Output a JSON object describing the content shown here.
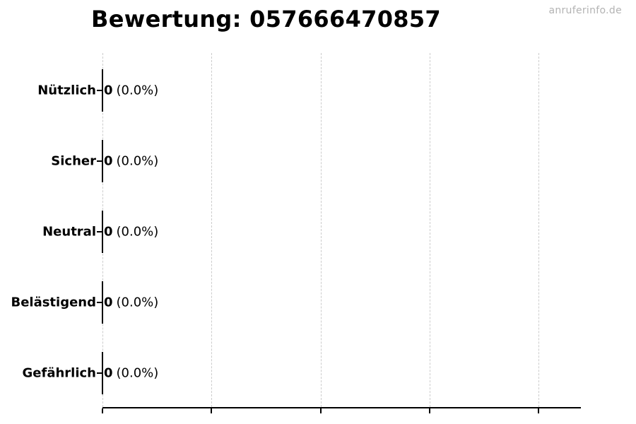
{
  "chart_data": {
    "type": "bar",
    "orientation": "horizontal",
    "title": "Bewertung: 057666470857",
    "watermark": "anruferinfo.de",
    "categories": [
      "Nützlich",
      "Sicher",
      "Neutral",
      "Belästigend",
      "Gefährlich"
    ],
    "values": [
      0,
      0,
      0,
      0,
      0
    ],
    "value_labels": [
      "0 (0.0%)",
      "0 (0.0%)",
      "0 (0.0%)",
      "0 (0.0%)",
      "0 (0.0%)"
    ],
    "xlabel": "",
    "ylabel": "",
    "x_tick_labels": [],
    "gridlines": {
      "axis": "x",
      "count": 5,
      "style": "dashed",
      "color": "#cccccc"
    },
    "legend": "none",
    "bar_edge_color": "#000000",
    "background": "#ffffff"
  },
  "rows": [
    {
      "label": "Nützlich",
      "value": "0",
      "percent": "(0.0%)"
    },
    {
      "label": "Sicher",
      "value": "0",
      "percent": "(0.0%)"
    },
    {
      "label": "Neutral",
      "value": "0",
      "percent": "(0.0%)"
    },
    {
      "label": "Belästigend",
      "value": "0",
      "percent": "(0.0%)"
    },
    {
      "label": "Gefährlich",
      "value": "0",
      "percent": "(0.0%)"
    }
  ],
  "colors": {
    "text": "#000000",
    "grid": "#cccccc",
    "axis": "#000000",
    "watermark": "#b3b3b3"
  }
}
